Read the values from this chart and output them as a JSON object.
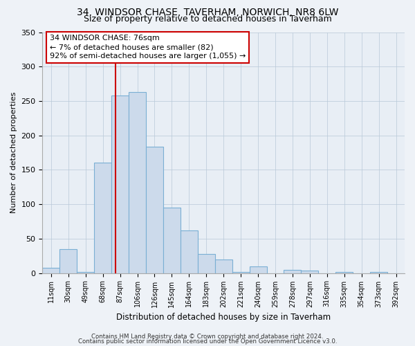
{
  "title": "34, WINDSOR CHASE, TAVERHAM, NORWICH, NR8 6LW",
  "subtitle": "Size of property relative to detached houses in Taverham",
  "xlabel": "Distribution of detached houses by size in Taverham",
  "ylabel": "Number of detached properties",
  "bin_labels": [
    "11sqm",
    "30sqm",
    "49sqm",
    "68sqm",
    "87sqm",
    "106sqm",
    "126sqm",
    "145sqm",
    "164sqm",
    "183sqm",
    "202sqm",
    "221sqm",
    "240sqm",
    "259sqm",
    "278sqm",
    "297sqm",
    "316sqm",
    "335sqm",
    "354sqm",
    "373sqm",
    "392sqm"
  ],
  "bar_heights": [
    8,
    35,
    2,
    160,
    258,
    263,
    184,
    95,
    62,
    28,
    20,
    2,
    10,
    0,
    5,
    4,
    0,
    2,
    0,
    2,
    0
  ],
  "bar_color": "#ccdaeb",
  "bar_edge_color": "#7aafd4",
  "vline_x": 3.75,
  "vline_color": "#cc0000",
  "annotation_text": "34 WINDSOR CHASE: 76sqm\n← 7% of detached houses are smaller (82)\n92% of semi-detached houses are larger (1,055) →",
  "annotation_box_edgecolor": "#cc0000",
  "ylim": [
    0,
    350
  ],
  "yticks": [
    0,
    50,
    100,
    150,
    200,
    250,
    300,
    350
  ],
  "footer1": "Contains HM Land Registry data © Crown copyright and database right 2024.",
  "footer2": "Contains public sector information licensed under the Open Government Licence v3.0.",
  "background_color": "#eef2f7",
  "plot_bg_color": "#e8eef5"
}
